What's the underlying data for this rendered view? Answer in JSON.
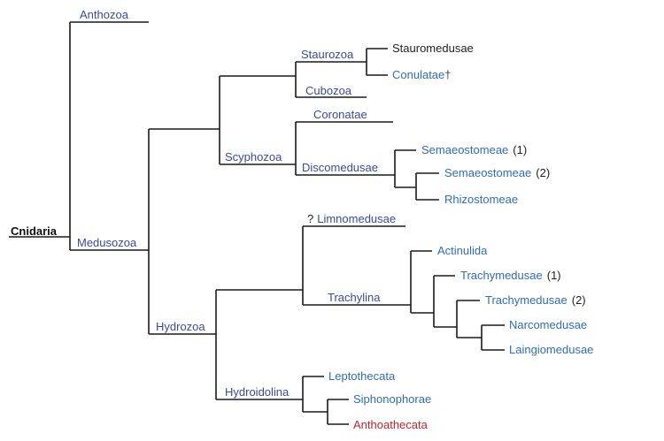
{
  "tree": {
    "root": "Cnidaria",
    "anthozoa": "Anthozoa",
    "medusozoa": "Medusozoa",
    "staurozoa": "Staurozoa",
    "stauromedusae": "Stauromedusae",
    "conulatae": "Conulatae",
    "extinct_mark": "†",
    "cubozoa": "Cubozoa",
    "scyphozoa": "Scyphozoa",
    "coronatae": "Coronatae",
    "discomedusae": "Discomedusae",
    "semaeostomeae": "Semaeostomeae",
    "semaeostomeae_1_tag": "(1)",
    "semaeostomeae_2_tag": "(2)",
    "rhizostomeae": "Rhizostomeae",
    "hydrozoa": "Hydrozoa",
    "limnomedusae_prefix": "?",
    "limnomedusae": "Limnomedusae",
    "trachylina": "Trachylina",
    "actinulida": "Actinulida",
    "trachymedusae": "Trachymedusae",
    "trachymedusae_1_tag": "(1)",
    "trachymedusae_2_tag": "(2)",
    "narcomedusae": "Narcomedusae",
    "laingiomedusae": "Laingiomedusae",
    "hydroidolina": "Hydroidolina",
    "leptothecata": "Leptothecata",
    "siphonophorae": "Siphonophorae",
    "anthoathecata": "Anthoathecata"
  },
  "colors": {
    "linked_label": "#3a4a9c",
    "plain_label": "#2f6db5",
    "highlight_label": "#c0242a",
    "lines": "#1a1a1a"
  }
}
